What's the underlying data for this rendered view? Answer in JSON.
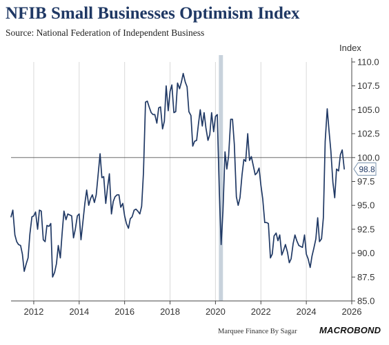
{
  "header": {
    "title": "NFIB Small Businesses Optimism Index",
    "subtitle": "Source: National Federation of Independent Business",
    "unit_label": "Index"
  },
  "footer": {
    "credit": "Marquee Finance By Sagar",
    "brand": "MACROBOND"
  },
  "colors": {
    "line": "#1f3864",
    "recession_band": "#c8d2dc",
    "reference_line": "#555555",
    "callout_border": "#7a93ad"
  },
  "chart_data": {
    "type": "line",
    "title": "NFIB Small Businesses Optimism Index",
    "ylabel": "Index",
    "xlim": [
      2011.0,
      2026.0
    ],
    "ylim": [
      85.0,
      110.0
    ],
    "x_ticks": [
      2012,
      2014,
      2016,
      2018,
      2020,
      2022,
      2024,
      2026
    ],
    "x_tick_labels": [
      "2012",
      "2014",
      "2016",
      "2018",
      "2020",
      "2022",
      "2024",
      "2026"
    ],
    "y_ticks": [
      85.0,
      87.5,
      90.0,
      92.5,
      95.0,
      97.5,
      100.0,
      102.5,
      105.0,
      107.5,
      110.0
    ],
    "y_tick_labels": [
      "85.0",
      "87.5",
      "90.0",
      "92.5",
      "95.0",
      "97.5",
      "100.0",
      "102.5",
      "105.0",
      "107.5",
      "110.0"
    ],
    "grid": "vertical",
    "reference_line": 100.0,
    "shaded_band": [
      2020.15,
      2020.33
    ],
    "last_value_label": "98.8",
    "series": [
      {
        "values": [
          [
            2011.0,
            93.8
          ],
          [
            2011.08,
            94.5
          ],
          [
            2011.17,
            91.9
          ],
          [
            2011.25,
            91.2
          ],
          [
            2011.33,
            90.9
          ],
          [
            2011.42,
            90.8
          ],
          [
            2011.5,
            89.9
          ],
          [
            2011.58,
            88.1
          ],
          [
            2011.67,
            88.9
          ],
          [
            2011.75,
            89.5
          ],
          [
            2011.83,
            92.0
          ],
          [
            2011.92,
            93.8
          ],
          [
            2012.0,
            93.9
          ],
          [
            2012.08,
            94.3
          ],
          [
            2012.17,
            92.5
          ],
          [
            2012.25,
            94.5
          ],
          [
            2012.33,
            94.4
          ],
          [
            2012.42,
            91.4
          ],
          [
            2012.5,
            91.2
          ],
          [
            2012.58,
            92.9
          ],
          [
            2012.67,
            92.8
          ],
          [
            2012.75,
            93.1
          ],
          [
            2012.83,
            87.5
          ],
          [
            2012.92,
            88.0
          ],
          [
            2013.0,
            88.9
          ],
          [
            2013.08,
            90.8
          ],
          [
            2013.17,
            89.5
          ],
          [
            2013.25,
            92.1
          ],
          [
            2013.33,
            94.4
          ],
          [
            2013.42,
            93.5
          ],
          [
            2013.5,
            94.1
          ],
          [
            2013.58,
            94.0
          ],
          [
            2013.67,
            93.9
          ],
          [
            2013.75,
            91.6
          ],
          [
            2013.83,
            92.5
          ],
          [
            2013.92,
            93.9
          ],
          [
            2014.0,
            94.1
          ],
          [
            2014.08,
            91.4
          ],
          [
            2014.17,
            93.4
          ],
          [
            2014.25,
            95.2
          ],
          [
            2014.33,
            96.6
          ],
          [
            2014.42,
            95.0
          ],
          [
            2014.5,
            95.7
          ],
          [
            2014.58,
            96.1
          ],
          [
            2014.67,
            95.3
          ],
          [
            2014.75,
            96.1
          ],
          [
            2014.83,
            98.1
          ],
          [
            2014.92,
            100.4
          ],
          [
            2015.0,
            97.9
          ],
          [
            2015.08,
            98.0
          ],
          [
            2015.17,
            95.2
          ],
          [
            2015.25,
            96.9
          ],
          [
            2015.33,
            98.3
          ],
          [
            2015.42,
            94.1
          ],
          [
            2015.5,
            95.4
          ],
          [
            2015.58,
            95.9
          ],
          [
            2015.67,
            96.1
          ],
          [
            2015.75,
            96.1
          ],
          [
            2015.83,
            94.8
          ],
          [
            2015.92,
            95.2
          ],
          [
            2016.0,
            93.9
          ],
          [
            2016.08,
            93.1
          ],
          [
            2016.17,
            92.6
          ],
          [
            2016.25,
            93.6
          ],
          [
            2016.33,
            93.8
          ],
          [
            2016.42,
            94.5
          ],
          [
            2016.5,
            94.6
          ],
          [
            2016.58,
            94.4
          ],
          [
            2016.67,
            94.1
          ],
          [
            2016.75,
            94.9
          ],
          [
            2016.83,
            98.4
          ],
          [
            2016.92,
            105.8
          ],
          [
            2017.0,
            105.9
          ],
          [
            2017.08,
            105.3
          ],
          [
            2017.17,
            104.7
          ],
          [
            2017.25,
            104.5
          ],
          [
            2017.33,
            104.5
          ],
          [
            2017.42,
            103.6
          ],
          [
            2017.5,
            105.2
          ],
          [
            2017.58,
            105.3
          ],
          [
            2017.67,
            103.0
          ],
          [
            2017.75,
            103.8
          ],
          [
            2017.83,
            107.5
          ],
          [
            2017.92,
            104.9
          ],
          [
            2018.0,
            106.9
          ],
          [
            2018.08,
            107.6
          ],
          [
            2018.17,
            104.7
          ],
          [
            2018.25,
            104.8
          ],
          [
            2018.33,
            107.8
          ],
          [
            2018.42,
            107.2
          ],
          [
            2018.5,
            107.9
          ],
          [
            2018.58,
            108.8
          ],
          [
            2018.67,
            107.9
          ],
          [
            2018.75,
            107.4
          ],
          [
            2018.83,
            104.8
          ],
          [
            2018.92,
            104.4
          ],
          [
            2019.0,
            101.2
          ],
          [
            2019.08,
            101.7
          ],
          [
            2019.17,
            101.8
          ],
          [
            2019.25,
            103.5
          ],
          [
            2019.33,
            105.0
          ],
          [
            2019.42,
            103.3
          ],
          [
            2019.5,
            104.7
          ],
          [
            2019.58,
            103.1
          ],
          [
            2019.67,
            101.8
          ],
          [
            2019.75,
            102.4
          ],
          [
            2019.83,
            104.7
          ],
          [
            2019.92,
            102.7
          ],
          [
            2020.0,
            104.3
          ],
          [
            2020.08,
            104.5
          ],
          [
            2020.17,
            96.4
          ],
          [
            2020.25,
            90.9
          ],
          [
            2020.33,
            94.4
          ],
          [
            2020.42,
            100.6
          ],
          [
            2020.5,
            98.8
          ],
          [
            2020.58,
            100.2
          ],
          [
            2020.67,
            104.0
          ],
          [
            2020.75,
            104.0
          ],
          [
            2020.83,
            101.4
          ],
          [
            2020.92,
            95.9
          ],
          [
            2021.0,
            95.0
          ],
          [
            2021.08,
            95.8
          ],
          [
            2021.17,
            98.2
          ],
          [
            2021.25,
            99.8
          ],
          [
            2021.33,
            99.6
          ],
          [
            2021.42,
            102.5
          ],
          [
            2021.5,
            99.7
          ],
          [
            2021.58,
            100.1
          ],
          [
            2021.67,
            99.1
          ],
          [
            2021.75,
            98.2
          ],
          [
            2021.83,
            98.4
          ],
          [
            2021.92,
            98.9
          ],
          [
            2022.0,
            97.1
          ],
          [
            2022.08,
            95.7
          ],
          [
            2022.17,
            93.2
          ],
          [
            2022.25,
            93.2
          ],
          [
            2022.33,
            93.1
          ],
          [
            2022.42,
            89.5
          ],
          [
            2022.5,
            89.9
          ],
          [
            2022.58,
            91.8
          ],
          [
            2022.67,
            92.1
          ],
          [
            2022.75,
            91.3
          ],
          [
            2022.83,
            91.9
          ],
          [
            2022.92,
            89.8
          ],
          [
            2023.0,
            90.3
          ],
          [
            2023.08,
            90.9
          ],
          [
            2023.17,
            90.1
          ],
          [
            2023.25,
            89.0
          ],
          [
            2023.33,
            89.4
          ],
          [
            2023.42,
            91.0
          ],
          [
            2023.5,
            91.9
          ],
          [
            2023.58,
            91.3
          ],
          [
            2023.67,
            90.8
          ],
          [
            2023.75,
            90.7
          ],
          [
            2023.83,
            90.6
          ],
          [
            2023.92,
            91.9
          ],
          [
            2024.0,
            89.9
          ],
          [
            2024.08,
            89.4
          ],
          [
            2024.17,
            88.5
          ],
          [
            2024.25,
            89.7
          ],
          [
            2024.33,
            90.5
          ],
          [
            2024.42,
            91.5
          ],
          [
            2024.5,
            93.7
          ],
          [
            2024.58,
            91.2
          ],
          [
            2024.67,
            91.5
          ],
          [
            2024.75,
            93.7
          ],
          [
            2024.83,
            101.7
          ],
          [
            2024.92,
            105.1
          ],
          [
            2025.0,
            102.8
          ],
          [
            2025.08,
            100.7
          ],
          [
            2025.17,
            97.4
          ],
          [
            2025.25,
            95.8
          ],
          [
            2025.33,
            98.8
          ],
          [
            2025.42,
            98.6
          ],
          [
            2025.5,
            100.3
          ],
          [
            2025.58,
            100.8
          ],
          [
            2025.67,
            98.8
          ]
        ]
      }
    ]
  }
}
